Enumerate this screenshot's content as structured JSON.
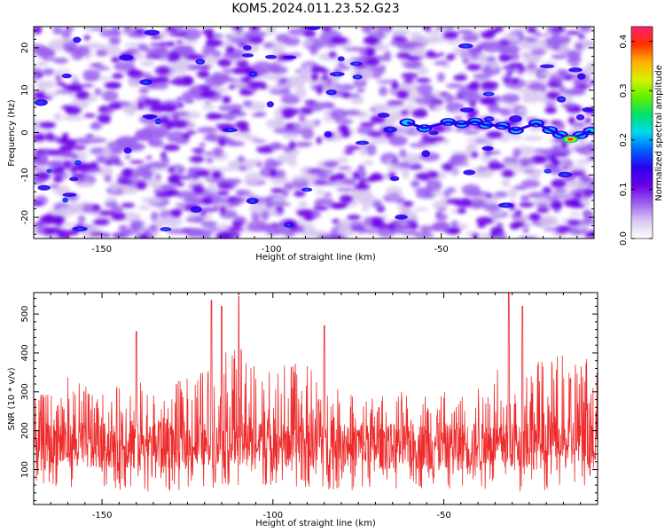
{
  "title": "KOM5.2024.011.23.52.G23",
  "colors": {
    "snr_line": "#ee2a2a",
    "colormap": [
      "#ffffff",
      "#d8c8f0",
      "#9b60f0",
      "#6a00e8",
      "#2a00f0",
      "#0060ff",
      "#00d8f0",
      "#00e070",
      "#60f000",
      "#d8f000",
      "#ffb000",
      "#ff3000",
      "#ff2070"
    ]
  },
  "chart_data": [
    {
      "type": "heatmap",
      "xlabel": "Height of straight line (km)",
      "ylabel": "Frequency (Hz)",
      "xlim": [
        -170,
        -5
      ],
      "ylim": [
        -25,
        25
      ],
      "xticks": [
        -150,
        -100,
        -50
      ],
      "yticks": [
        -20,
        -10,
        0,
        10,
        20
      ],
      "colorbar": {
        "label": "Normalized spectral amplitude",
        "range": [
          0,
          0.43
        ],
        "ticks": [
          0.0,
          0.1,
          0.2,
          0.3,
          0.4
        ]
      },
      "features": {
        "signal_track": [
          [
            -60,
            2.4
          ],
          [
            -55,
            1.0
          ],
          [
            -48,
            2.5
          ],
          [
            -44,
            2.0
          ],
          [
            -40,
            2.6
          ],
          [
            -37,
            1.8
          ],
          [
            -32,
            1.6
          ],
          [
            -28,
            0.5
          ],
          [
            -22,
            2.2
          ],
          [
            -18,
            0.6
          ],
          [
            -15,
            -0.5
          ],
          [
            -12,
            -1.5
          ],
          [
            -9,
            -0.6
          ],
          [
            -6,
            0.4
          ]
        ],
        "max_amplitude_location": [
          -12,
          -1.6
        ]
      }
    },
    {
      "type": "line",
      "xlabel": "Height of straight line (km)",
      "ylabel": "SNR (10 * v/v)",
      "xlim": [
        -170,
        -5
      ],
      "ylim": [
        10,
        555
      ],
      "xticks": [
        -150,
        -100,
        -50
      ],
      "yticks": [
        100,
        200,
        300,
        400,
        500
      ],
      "series": [
        {
          "envelope_upper": [
            [
              -170,
              280
            ],
            [
              -160,
              340
            ],
            [
              -150,
              300
            ],
            [
              -140,
              330
            ],
            [
              -130,
              320
            ],
            [
              -120,
              360
            ],
            [
              -115,
              400
            ],
            [
              -110,
              420
            ],
            [
              -100,
              380
            ],
            [
              -90,
              370
            ],
            [
              -80,
              300
            ],
            [
              -70,
              290
            ],
            [
              -60,
              310
            ],
            [
              -50,
              300
            ],
            [
              -40,
              330
            ],
            [
              -30,
              380
            ],
            [
              -20,
              390
            ],
            [
              -10,
              400
            ],
            [
              -5,
              430
            ]
          ],
          "envelope_lower": [
            [
              -170,
              60
            ],
            [
              -150,
              50
            ],
            [
              -130,
              40
            ],
            [
              -110,
              60
            ],
            [
              -90,
              50
            ],
            [
              -70,
              40
            ],
            [
              -50,
              50
            ],
            [
              -30,
              40
            ],
            [
              -10,
              50
            ],
            [
              -5,
              60
            ]
          ],
          "mean": 160,
          "peaks": [
            [
              -118,
              535
            ],
            [
              -115,
              520
            ],
            [
              -110,
              545
            ],
            [
              -31,
              555
            ],
            [
              -27,
              520
            ],
            [
              -85,
              470
            ],
            [
              -140,
              455
            ]
          ]
        }
      ]
    }
  ]
}
